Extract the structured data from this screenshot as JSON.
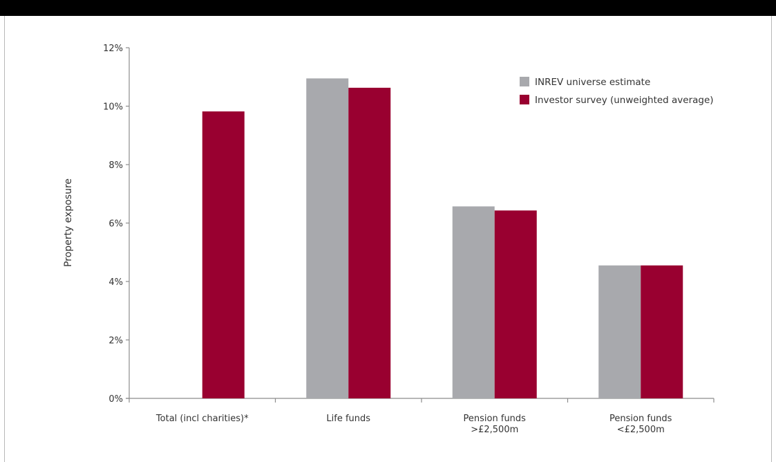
{
  "chart_data": {
    "type": "bar",
    "title": "",
    "xlabel": "",
    "ylabel": "Property exposure",
    "ylim": [
      0,
      12
    ],
    "yticks": [
      {
        "value": 0,
        "label": "0%"
      },
      {
        "value": 2,
        "label": "2%"
      },
      {
        "value": 4,
        "label": "4%"
      },
      {
        "value": 6,
        "label": "6%"
      },
      {
        "value": 8,
        "label": "8%"
      },
      {
        "value": 10,
        "label": "10%"
      },
      {
        "value": 12,
        "label": "12%"
      }
    ],
    "categories": [
      [
        "Total (incl charities)*"
      ],
      [
        "Life funds"
      ],
      [
        "Pension funds",
        ">£2,500m"
      ],
      [
        "Pension funds",
        "<£2,500m"
      ]
    ],
    "series": [
      {
        "name": "INREV universe estimate",
        "color": "#a8a9ad",
        "values": [
          null,
          10.95,
          6.57,
          4.55
        ]
      },
      {
        "name": "Investor survey (unweighted average)",
        "color": "#990030",
        "values": [
          9.82,
          10.63,
          6.43,
          4.55
        ]
      }
    ],
    "legend_position": "top-right",
    "grid": false
  }
}
